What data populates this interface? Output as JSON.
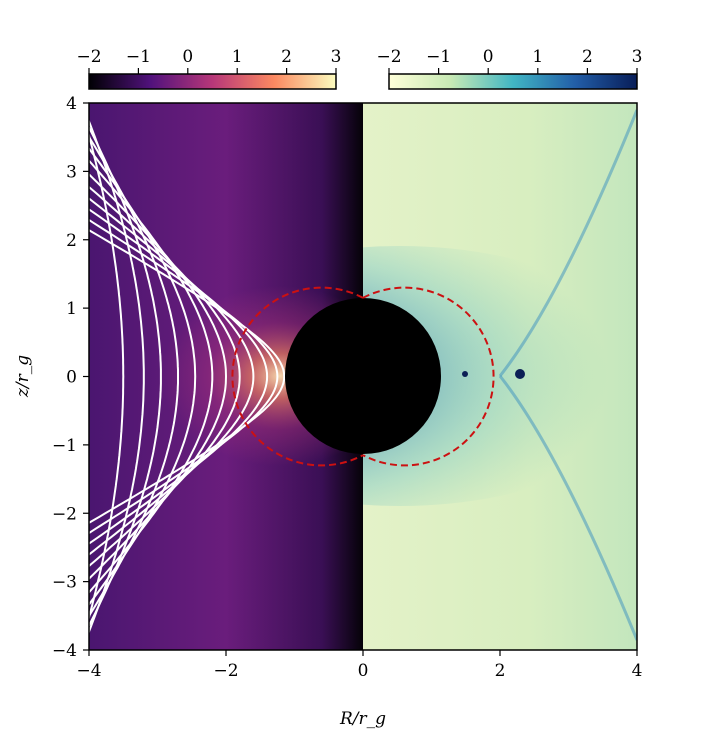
{
  "chart_data": {
    "type": "heatmap",
    "xlabel": "R/r_g",
    "ylabel": "z/r_g",
    "xlim": [
      -4,
      4
    ],
    "ylim": [
      -4,
      4
    ],
    "xticks": [
      "−4",
      "−2",
      "0",
      "2",
      "4"
    ],
    "yticks": [
      "4",
      "3",
      "2",
      "1",
      "0",
      "−1",
      "−2",
      "−3",
      "−4"
    ],
    "grid": false,
    "panels": [
      {
        "side": "left",
        "colormap": "magma",
        "field_lines": true,
        "field_line_color": "#ffffff"
      },
      {
        "side": "right",
        "colormap": "YlGnBu"
      }
    ],
    "colorbars": [
      {
        "position": "top-left",
        "colormap": "magma",
        "range": [
          -2,
          3
        ],
        "ticks": [
          "−2",
          "−1",
          "0",
          "1",
          "2",
          "3"
        ],
        "colors": [
          "#000004",
          "#51127c",
          "#b73779",
          "#fc8961",
          "#fcfdbf"
        ]
      },
      {
        "position": "top-right",
        "colormap": "YlGnBu",
        "range": [
          -2,
          3
        ],
        "ticks": [
          "−2",
          "−1",
          "0",
          "1",
          "2",
          "3"
        ],
        "colors": [
          "#ffffd9",
          "#c7e9b4",
          "#41b6c4",
          "#225ea8",
          "#081d58"
        ]
      }
    ],
    "black_hole": {
      "color": "#000000",
      "radius": 1.14
    },
    "dashed_boundary_color": "#cc1111"
  }
}
